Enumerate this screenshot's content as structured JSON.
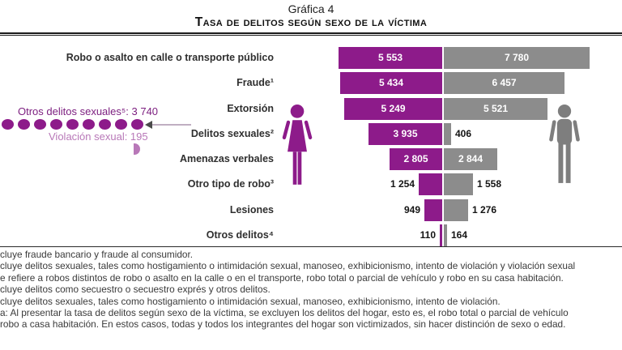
{
  "title": {
    "line1": "Gráfica 4",
    "line2": "Tasa de delitos según sexo de la víctima"
  },
  "colors": {
    "women_bar": "#8d1b8a",
    "men_bar": "#8c8c8c",
    "man_icon": "#7e7e7e",
    "annotation_dark": "#7d2080",
    "annotation_light": "#b878b8",
    "value_outside_text": "#141414",
    "value_inside_text": "#ffffff"
  },
  "icons": {
    "woman": "woman-icon (purple restroom-style figure, left/women series)",
    "man": "man-icon (gray restroom-style figure, right/men series)"
  },
  "chart_data": {
    "type": "bar",
    "variant": "diverging-horizontal",
    "title": "Tasa de delitos según sexo de la víctima",
    "categories": [
      "Robo o asalto en calle o transporte público",
      "Fraude¹",
      "Extorsión",
      "Delitos sexuales²",
      "Amenazas verbales",
      "Otro tipo de robo³",
      "Lesiones",
      "Otros delitos⁴"
    ],
    "series": [
      {
        "name": "woman (purple, extends left)",
        "color": "#8d1b8a",
        "values": [
          5553,
          5434,
          5249,
          3935,
          2805,
          1254,
          949,
          110
        ],
        "labels": [
          "5 553",
          "5 434",
          "5 249",
          "3 935",
          "2 805",
          "1 254",
          "949",
          "110"
        ]
      },
      {
        "name": "man (gray, extends right)",
        "color": "#8c8c8c",
        "values": [
          7780,
          6457,
          5521,
          406,
          2844,
          1558,
          1276,
          164
        ],
        "labels": [
          "7 780",
          "6 457",
          "5 521",
          "406",
          "2 844",
          "1 558",
          "1 276",
          "164"
        ]
      }
    ],
    "annotation": {
      "line1": "Otros delitos sexuales⁵: 3 740",
      "line2": "Violación sexual: 195",
      "dot_count": 9,
      "target_category": "Delitos sexuales²"
    },
    "axis": {
      "center_divider": true,
      "value_axis_hidden": true
    }
  },
  "footnotes": [
    "cluye fraude bancario y fraude al consumidor.",
    "cluye delitos sexuales, tales como hostigamiento o intimidación sexual, manoseo, exhibicionismo, intento de violación y violación sexual",
    "e refiere a robos distintos de robo o asalto en la calle o en el transporte, robo total o parcial de vehículo y robo en su casa habitación.",
    "cluye delitos como secuestro o secuestro exprés y otros delitos.",
    "cluye delitos sexuales, tales como hostigamiento o intimidación sexual, manoseo, exhibicionismo, intento de violación.",
    "a: Al presentar la tasa de delitos según sexo de la víctima, se excluyen los delitos del hogar, esto es, el robo total o parcial de vehículo",
    "robo a casa habitación. En estos casos, todas y todos los integrantes del hogar son victimizados, sin hacer distinción de sexo o edad."
  ]
}
